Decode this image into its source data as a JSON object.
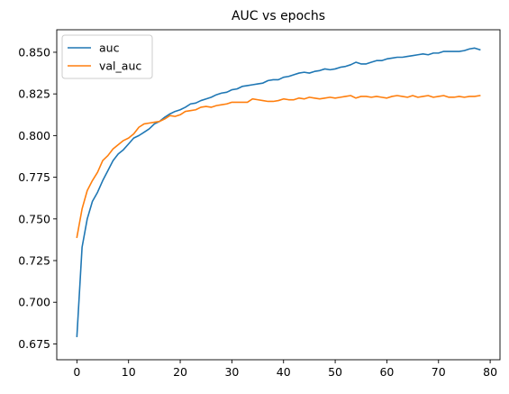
{
  "chart_data": {
    "type": "line",
    "title": "AUC vs epochs",
    "xlabel": "",
    "ylabel": "",
    "xlim": [
      -3.9,
      81.9
    ],
    "ylim": [
      0.6655,
      0.8635
    ],
    "x_ticks": [
      0,
      10,
      20,
      30,
      40,
      50,
      60,
      70,
      80
    ],
    "y_ticks": [
      0.675,
      0.7,
      0.725,
      0.75,
      0.775,
      0.8,
      0.825,
      0.85
    ],
    "y_tick_labels": [
      "0.675",
      "0.700",
      "0.725",
      "0.750",
      "0.775",
      "0.800",
      "0.825",
      "0.850"
    ],
    "grid": false,
    "legend_position": "upper-left",
    "series": [
      {
        "name": "auc",
        "color": "#1f77b4",
        "values": [
          0.6795,
          0.733,
          0.75,
          0.7605,
          0.766,
          0.773,
          0.779,
          0.785,
          0.789,
          0.7915,
          0.795,
          0.7985,
          0.8,
          0.802,
          0.804,
          0.807,
          0.8085,
          0.811,
          0.813,
          0.8145,
          0.8155,
          0.817,
          0.819,
          0.8195,
          0.821,
          0.822,
          0.823,
          0.8245,
          0.8255,
          0.826,
          0.8275,
          0.828,
          0.8295,
          0.83,
          0.8305,
          0.831,
          0.8315,
          0.833,
          0.8335,
          0.8335,
          0.835,
          0.8355,
          0.8365,
          0.8375,
          0.838,
          0.8375,
          0.8385,
          0.839,
          0.84,
          0.8395,
          0.84,
          0.841,
          0.8415,
          0.8425,
          0.844,
          0.843,
          0.843,
          0.844,
          0.845,
          0.845,
          0.846,
          0.8465,
          0.847,
          0.847,
          0.8475,
          0.848,
          0.8485,
          0.849,
          0.8485,
          0.8495,
          0.8495,
          0.8505,
          0.8505,
          0.8505,
          0.8505,
          0.851,
          0.852,
          0.8525,
          0.8515
        ]
      },
      {
        "name": "val_auc",
        "color": "#ff7f0e",
        "values": [
          0.739,
          0.756,
          0.767,
          0.773,
          0.778,
          0.785,
          0.788,
          0.792,
          0.7945,
          0.797,
          0.7985,
          0.801,
          0.805,
          0.807,
          0.8075,
          0.808,
          0.8085,
          0.81,
          0.812,
          0.8115,
          0.8125,
          0.8145,
          0.815,
          0.8155,
          0.817,
          0.8175,
          0.817,
          0.818,
          0.8185,
          0.819,
          0.82,
          0.82,
          0.82,
          0.82,
          0.822,
          0.8215,
          0.821,
          0.8205,
          0.8205,
          0.821,
          0.822,
          0.8215,
          0.8215,
          0.8225,
          0.822,
          0.823,
          0.8225,
          0.822,
          0.8225,
          0.823,
          0.8225,
          0.823,
          0.8235,
          0.824,
          0.8225,
          0.8235,
          0.8235,
          0.823,
          0.8235,
          0.823,
          0.8225,
          0.8235,
          0.824,
          0.8235,
          0.823,
          0.824,
          0.823,
          0.8235,
          0.824,
          0.823,
          0.8235,
          0.824,
          0.823,
          0.823,
          0.8235,
          0.823,
          0.8235,
          0.8235,
          0.824
        ]
      }
    ]
  }
}
